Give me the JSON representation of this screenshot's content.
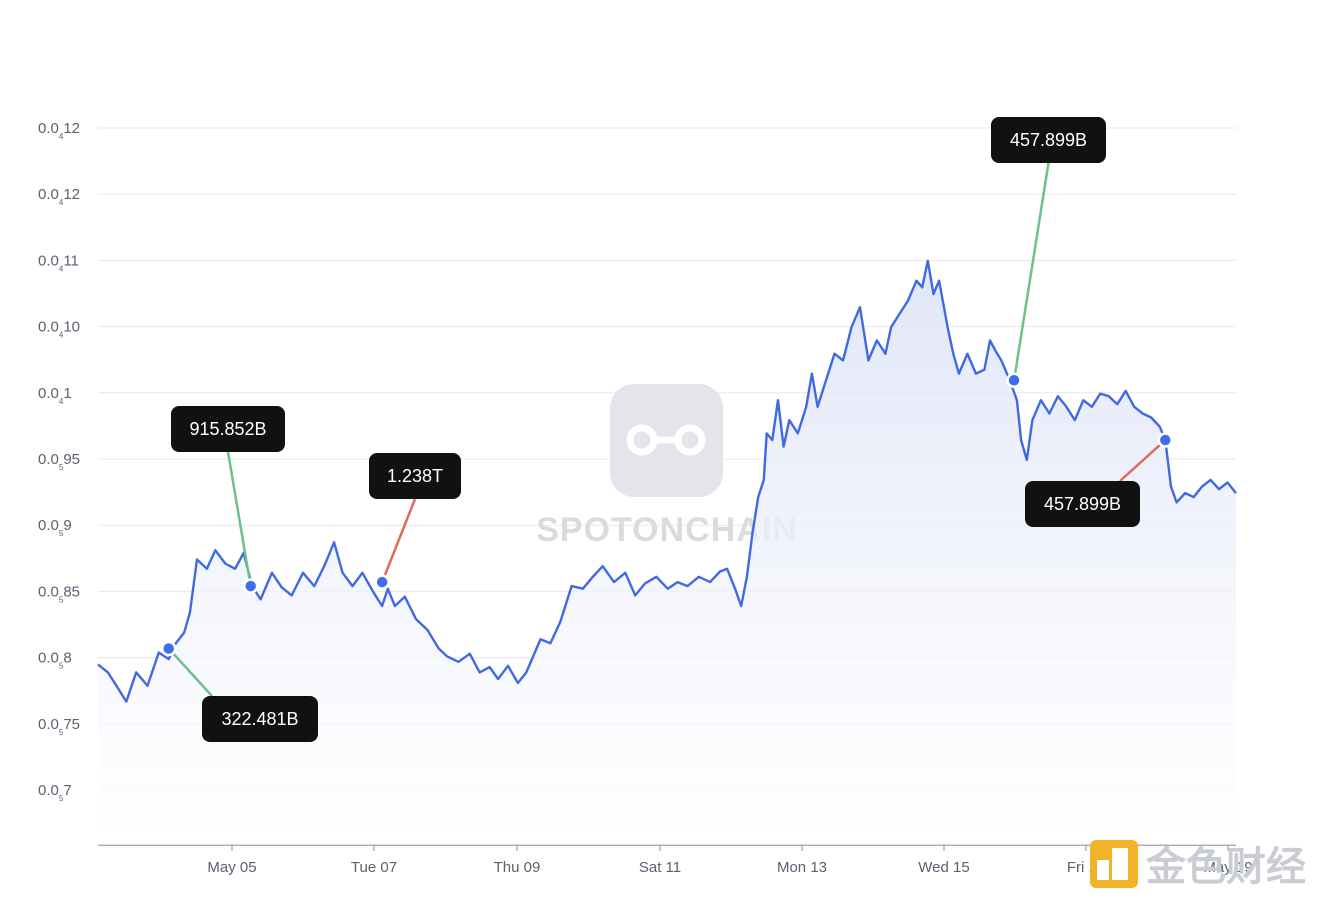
{
  "chart_data": {
    "type": "line",
    "title": "",
    "xlabel": "",
    "ylabel": "",
    "x_ticks": [
      "May 05",
      "Tue 07",
      "Thu 09",
      "Sat 11",
      "Mon 13",
      "Wed 15",
      "Fri 17",
      "May 19"
    ],
    "y_ticks": [
      {
        "main": "0.0",
        "sub": "4",
        "tail": "12",
        "value": 0.00125
      },
      {
        "main": "0.0",
        "sub": "4",
        "tail": "12",
        "value": 0.0012
      },
      {
        "main": "0.0",
        "sub": "4",
        "tail": "11",
        "value": 0.00115
      },
      {
        "main": "0.0",
        "sub": "4",
        "tail": "10",
        "value": 0.0011
      },
      {
        "main": "0.0",
        "sub": "4",
        "tail": "1",
        "value": 0.00105
      },
      {
        "main": "0.0",
        "sub": "5",
        "tail": "95",
        "value": 0.001
      },
      {
        "main": "0.0",
        "sub": "5",
        "tail": "9",
        "value": 0.00095
      },
      {
        "main": "0.0",
        "sub": "5",
        "tail": "85",
        "value": 0.0009
      },
      {
        "main": "0.0",
        "sub": "5",
        "tail": "8",
        "value": 0.00085
      },
      {
        "main": "0.0",
        "sub": "5",
        "tail": "75",
        "value": 0.0008
      },
      {
        "main": "0.0",
        "sub": "5",
        "tail": "7",
        "value": 0.00075
      }
    ],
    "ylim": [
      0.00071,
      0.00125
    ],
    "xlim_days": [
      3.05,
      11.1
    ],
    "series": [
      {
        "color": "#4169e1",
        "points": [
          [
            3.05,
            0.000846
          ],
          [
            3.12,
            0.00084
          ],
          [
            3.18,
            0.00083
          ],
          [
            3.25,
            0.000818
          ],
          [
            3.32,
            0.00084
          ],
          [
            3.4,
            0.00083
          ],
          [
            3.48,
            0.000855
          ],
          [
            3.55,
            0.00085
          ],
          [
            3.6,
            0.000862
          ],
          [
            3.66,
            0.00087
          ],
          [
            3.7,
            0.000885
          ],
          [
            3.75,
            0.000925
          ],
          [
            3.82,
            0.000918
          ],
          [
            3.88,
            0.000932
          ],
          [
            3.95,
            0.000922
          ],
          [
            4.02,
            0.000918
          ],
          [
            4.08,
            0.00093
          ],
          [
            4.14,
            0.000905
          ],
          [
            4.2,
            0.000895
          ],
          [
            4.28,
            0.000915
          ],
          [
            4.35,
            0.000904
          ],
          [
            4.42,
            0.000898
          ],
          [
            4.5,
            0.000915
          ],
          [
            4.58,
            0.000905
          ],
          [
            4.65,
            0.00092
          ],
          [
            4.72,
            0.000938
          ],
          [
            4.78,
            0.000915
          ],
          [
            4.85,
            0.000905
          ],
          [
            4.92,
            0.000915
          ],
          [
            5.0,
            0.0009
          ],
          [
            5.06,
            0.00089
          ],
          [
            5.1,
            0.000903
          ],
          [
            5.15,
            0.00089
          ],
          [
            5.22,
            0.000897
          ],
          [
            5.3,
            0.00088
          ],
          [
            5.38,
            0.000872
          ],
          [
            5.46,
            0.000858
          ],
          [
            5.52,
            0.000852
          ],
          [
            5.6,
            0.000848
          ],
          [
            5.68,
            0.000854
          ],
          [
            5.75,
            0.00084
          ],
          [
            5.82,
            0.000844
          ],
          [
            5.88,
            0.000835
          ],
          [
            5.95,
            0.000845
          ],
          [
            6.02,
            0.000832
          ],
          [
            6.08,
            0.00084
          ],
          [
            6.12,
            0.00085
          ],
          [
            6.18,
            0.000865
          ],
          [
            6.25,
            0.000862
          ],
          [
            6.32,
            0.000878
          ],
          [
            6.4,
            0.000905
          ],
          [
            6.48,
            0.000903
          ],
          [
            6.55,
            0.000912
          ],
          [
            6.62,
            0.00092
          ],
          [
            6.7,
            0.000908
          ],
          [
            6.78,
            0.000915
          ],
          [
            6.85,
            0.000898
          ],
          [
            6.92,
            0.000907
          ],
          [
            7.0,
            0.000912
          ],
          [
            7.08,
            0.000903
          ],
          [
            7.15,
            0.000908
          ],
          [
            7.22,
            0.000905
          ],
          [
            7.3,
            0.000912
          ],
          [
            7.38,
            0.000908
          ],
          [
            7.45,
            0.000916
          ],
          [
            7.5,
            0.000918
          ],
          [
            7.56,
            0.000902
          ],
          [
            7.6,
            0.00089
          ],
          [
            7.64,
            0.000912
          ],
          [
            7.68,
            0.000945
          ],
          [
            7.72,
            0.000972
          ],
          [
            7.76,
            0.000985
          ],
          [
            7.78,
            0.00102
          ],
          [
            7.82,
            0.001015
          ],
          [
            7.86,
            0.001045
          ],
          [
            7.9,
            0.00101
          ],
          [
            7.94,
            0.00103
          ],
          [
            8.0,
            0.00102
          ],
          [
            8.06,
            0.00104
          ],
          [
            8.1,
            0.001065
          ],
          [
            8.14,
            0.00104
          ],
          [
            8.2,
            0.00106
          ],
          [
            8.26,
            0.00108
          ],
          [
            8.32,
            0.001075
          ],
          [
            8.38,
            0.0011
          ],
          [
            8.44,
            0.001115
          ],
          [
            8.5,
            0.001075
          ],
          [
            8.56,
            0.00109
          ],
          [
            8.62,
            0.00108
          ],
          [
            8.66,
            0.0011
          ],
          [
            8.72,
            0.00111
          ],
          [
            8.78,
            0.00112
          ],
          [
            8.84,
            0.001135
          ],
          [
            8.88,
            0.00113
          ],
          [
            8.92,
            0.00115
          ],
          [
            8.96,
            0.001125
          ],
          [
            9.0,
            0.001135
          ],
          [
            9.06,
            0.0011
          ],
          [
            9.1,
            0.00108
          ],
          [
            9.14,
            0.001065
          ],
          [
            9.2,
            0.00108
          ],
          [
            9.26,
            0.001065
          ],
          [
            9.32,
            0.001068
          ],
          [
            9.36,
            0.00109
          ],
          [
            9.4,
            0.001082
          ],
          [
            9.44,
            0.001075
          ],
          [
            9.5,
            0.00106
          ],
          [
            9.55,
            0.001045
          ],
          [
            9.58,
            0.001015
          ],
          [
            9.62,
            0.001
          ],
          [
            9.66,
            0.00103
          ],
          [
            9.72,
            0.001045
          ],
          [
            9.78,
            0.001035
          ],
          [
            9.84,
            0.001048
          ],
          [
            9.9,
            0.00104
          ],
          [
            9.96,
            0.00103
          ],
          [
            10.02,
            0.001045
          ],
          [
            10.08,
            0.00104
          ],
          [
            10.14,
            0.00105
          ],
          [
            10.2,
            0.001048
          ],
          [
            10.26,
            0.001042
          ],
          [
            10.32,
            0.001052
          ],
          [
            10.38,
            0.00104
          ],
          [
            10.44,
            0.001035
          ],
          [
            10.5,
            0.001032
          ],
          [
            10.56,
            0.001025
          ],
          [
            10.6,
            0.001015
          ],
          [
            10.64,
            0.00098
          ],
          [
            10.68,
            0.000968
          ],
          [
            10.74,
            0.000975
          ],
          [
            10.8,
            0.000972
          ],
          [
            10.86,
            0.00098
          ],
          [
            10.92,
            0.000985
          ],
          [
            10.98,
            0.000978
          ],
          [
            11.04,
            0.000983
          ],
          [
            11.1,
            0.000975
          ]
        ]
      }
    ],
    "annotations": [
      {
        "label": "322.481B",
        "day": 3.55,
        "value": 0.000858,
        "color": "#6cc28a"
      },
      {
        "label": "915.852B",
        "day": 4.13,
        "value": 0.000905,
        "color": "#6cc28a"
      },
      {
        "label": "1.238T",
        "day": 5.06,
        "value": 0.000908,
        "color": "#e06a5e"
      },
      {
        "label": "457.899B",
        "day": 9.53,
        "value": 0.00106,
        "color": "#6cc28a"
      },
      {
        "label": "457.899B",
        "day": 10.6,
        "value": 0.001015,
        "color": "#e06a5e"
      }
    ],
    "grid": true,
    "legend": "none"
  },
  "watermark": {
    "text": "SPOTONCHAIN",
    "icon": "chain-link-icon"
  },
  "corner_logo": {
    "text": "金色财经",
    "icon": "jinse-logo-icon"
  },
  "colors": {
    "line": "#4169e1",
    "fill": "#eef1fb",
    "grid": "#e6e8ee",
    "axis": "#8a8fa0",
    "callout_bg": "#111111"
  }
}
